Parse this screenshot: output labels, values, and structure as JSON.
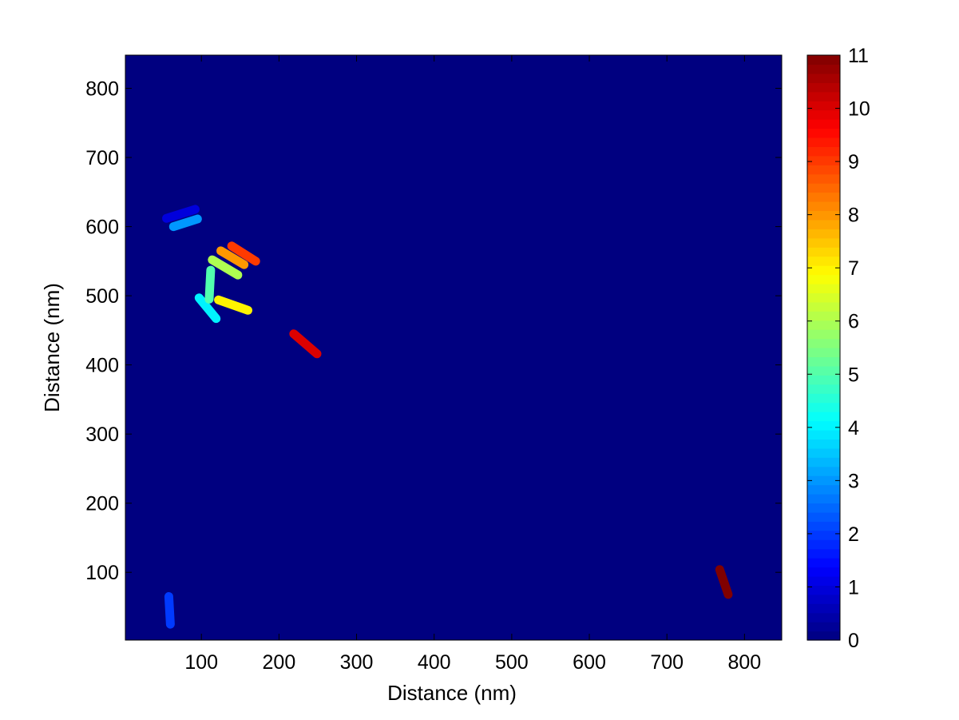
{
  "chart_data": {
    "type": "heatmap",
    "title": "",
    "xlabel": "Distance (nm)",
    "ylabel": "Distance (nm)",
    "xlim": [
      2,
      848
    ],
    "ylim": [
      2,
      848
    ],
    "x_ticks": [
      "100",
      "200",
      "300",
      "400",
      "500",
      "600",
      "700",
      "800"
    ],
    "y_ticks": [
      "100",
      "200",
      "300",
      "400",
      "500",
      "600",
      "700",
      "800"
    ],
    "background_value": 0,
    "colormap": "jet",
    "colorbar": {
      "min": 0,
      "max": 11,
      "ticks": [
        "0",
        "1",
        "2",
        "3",
        "4",
        "5",
        "6",
        "7",
        "8",
        "9",
        "10",
        "11"
      ]
    },
    "segments": [
      {
        "value": 1,
        "x": [
          55,
          92
        ],
        "y": [
          612,
          625
        ]
      },
      {
        "value": 2,
        "x": [
          58,
          60
        ],
        "y": [
          65,
          25
        ]
      },
      {
        "value": 3,
        "x": [
          64,
          95
        ],
        "y": [
          600,
          611
        ]
      },
      {
        "value": 4,
        "x": [
          97,
          119
        ],
        "y": [
          497,
          467
        ]
      },
      {
        "value": 5,
        "x": [
          110,
          112
        ],
        "y": [
          495,
          537
        ]
      },
      {
        "value": 6,
        "x": [
          114,
          147
        ],
        "y": [
          552,
          530
        ]
      },
      {
        "value": 7,
        "x": [
          122,
          160
        ],
        "y": [
          494,
          479
        ]
      },
      {
        "value": 8,
        "x": [
          125,
          155
        ],
        "y": [
          565,
          545
        ]
      },
      {
        "value": 9,
        "x": [
          139,
          170
        ],
        "y": [
          572,
          550
        ]
      },
      {
        "value": 10,
        "x": [
          219,
          249
        ],
        "y": [
          445,
          416
        ]
      },
      {
        "value": 11,
        "x": [
          768,
          779
        ],
        "y": [
          104,
          68
        ]
      }
    ]
  }
}
